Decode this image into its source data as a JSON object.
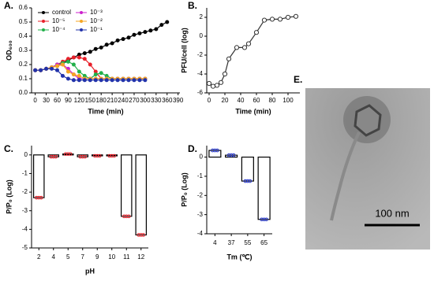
{
  "chart_data": [
    {
      "type": "line",
      "panel": "A.",
      "x_label": "Time (min)",
      "y_label": "OD₆₀₀",
      "x": [
        0,
        15,
        30,
        45,
        60,
        75,
        90,
        105,
        120,
        135,
        150,
        165,
        180,
        195,
        210,
        225,
        240,
        255,
        270,
        285,
        300,
        315,
        330,
        345,
        360
      ],
      "xlim": [
        -10,
        395
      ],
      "xticks": [
        0,
        30,
        60,
        90,
        120,
        150,
        180,
        210,
        240,
        270,
        300,
        330,
        360,
        390
      ],
      "ylim": [
        0,
        0.6
      ],
      "yticks": [
        {
          "value": 0,
          "label": "0.0"
        },
        0.1,
        0.2,
        0.3,
        0.4,
        0.5,
        0.6
      ],
      "legend": "top-left",
      "series": [
        {
          "name": "control",
          "color": "#000000",
          "values": [
            0.16,
            0.16,
            0.17,
            0.18,
            0.19,
            0.21,
            0.23,
            0.25,
            0.27,
            0.28,
            0.29,
            0.31,
            0.32,
            0.34,
            0.35,
            0.37,
            0.38,
            0.39,
            0.41,
            0.42,
            0.43,
            0.44,
            0.45,
            0.48,
            0.5
          ]
        },
        {
          "name": "10⁻⁵",
          "color": "#e8202a",
          "values": [
            0.16,
            0.16,
            0.17,
            0.18,
            0.2,
            0.22,
            0.24,
            0.25,
            0.25,
            0.24,
            0.2,
            0.15,
            0.1,
            0.1,
            0.1,
            0.1,
            0.1,
            0.1,
            0.1,
            0.1,
            0.1,
            null,
            null,
            null,
            null
          ]
        },
        {
          "name": "10⁻⁴",
          "color": "#22b04b",
          "values": [
            0.16,
            0.16,
            0.17,
            0.18,
            0.2,
            0.21,
            0.22,
            0.2,
            0.15,
            0.12,
            0.1,
            0.13,
            0.14,
            0.12,
            0.1,
            0.1,
            0.1,
            0.1,
            0.1,
            0.1,
            0.1,
            null,
            null,
            null,
            null
          ]
        },
        {
          "name": "10⁻³",
          "color": "#cc22cc",
          "values": [
            0.16,
            0.16,
            0.17,
            0.18,
            0.2,
            0.2,
            0.17,
            0.13,
            0.1,
            0.1,
            0.1,
            0.1,
            0.1,
            0.1,
            0.1,
            0.1,
            0.1,
            0.1,
            0.1,
            0.1,
            0.1,
            null,
            null,
            null,
            null
          ]
        },
        {
          "name": "10⁻²",
          "color": "#f5a623",
          "values": [
            0.16,
            0.16,
            0.17,
            0.18,
            0.19,
            0.2,
            0.15,
            0.13,
            0.12,
            0.1,
            0.1,
            0.1,
            0.1,
            0.1,
            0.1,
            0.1,
            0.1,
            0.1,
            0.1,
            0.1,
            0.1,
            null,
            null,
            null,
            null
          ]
        },
        {
          "name": "10⁻¹",
          "color": "#2233aa",
          "values": [
            0.16,
            0.16,
            0.17,
            0.17,
            0.16,
            0.12,
            0.1,
            0.09,
            0.09,
            0.09,
            0.09,
            0.09,
            0.09,
            0.09,
            0.09,
            0.09,
            0.09,
            0.09,
            0.09,
            0.09,
            0.09,
            null,
            null,
            null,
            null
          ]
        }
      ]
    },
    {
      "type": "line",
      "panel": "B.",
      "x_label": "Time (min)",
      "y_label": "PFU/cell (log)",
      "x": [
        0,
        5,
        10,
        15,
        20,
        25,
        35,
        45,
        50,
        60,
        70,
        80,
        90,
        100,
        110
      ],
      "xlim": [
        -3,
        115
      ],
      "xticks": [
        0,
        20,
        40,
        60,
        80,
        100
      ],
      "ylim": [
        -6,
        3
      ],
      "yticks": [
        -6,
        -4,
        -2,
        0,
        2
      ],
      "marker": "open-circle",
      "series": [
        {
          "color": "#333333",
          "values": [
            -5,
            -5.3,
            -5.2,
            -4.9,
            -4,
            -2.4,
            -1.2,
            -1.2,
            -0.8,
            0.4,
            1.7,
            1.8,
            1.8,
            2,
            2.1
          ]
        }
      ]
    },
    {
      "type": "bar",
      "panel": "C.",
      "x_label": "pH",
      "y_label": "P/P₀ (Log)",
      "categories": [
        "2",
        "4",
        "5",
        "7",
        "9",
        "10",
        "11",
        "12"
      ],
      "values": [
        -2.3,
        -0.1,
        0.05,
        -0.1,
        -0.05,
        -0.05,
        -3.3,
        -4.3
      ],
      "color": "#ffffff",
      "point_color": "#e8202a",
      "ylim": [
        -5,
        0.5
      ],
      "yticks": [
        -5,
        -4,
        -3,
        -2,
        -1,
        0
      ]
    },
    {
      "type": "bar",
      "panel": "D.",
      "x_label": "Tm (℃)",
      "y_label": "P/P₀ (Log)",
      "categories": [
        "4",
        "37",
        "55",
        "65"
      ],
      "values": [
        0.35,
        0.1,
        -1.25,
        -3.25
      ],
      "color": "#ffffff",
      "point_color": "#2233cc",
      "ylim": [
        -4,
        0.6
      ],
      "yticks": [
        -4,
        -3,
        -2,
        -1,
        0
      ]
    }
  ],
  "image_panel": {
    "panel": "E.",
    "scale_text": "100 nm"
  }
}
